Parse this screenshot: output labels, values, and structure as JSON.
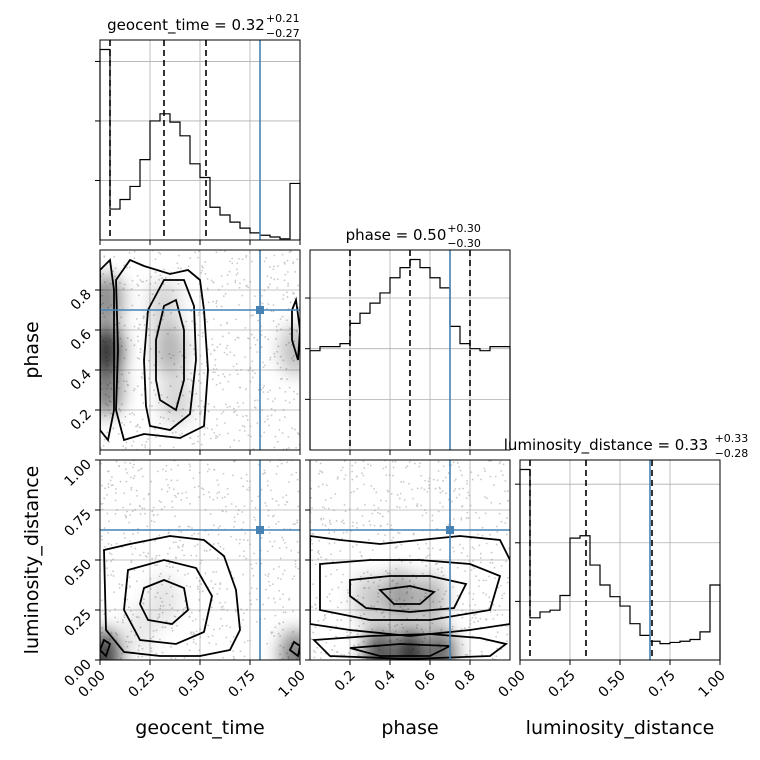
{
  "parameters": [
    "geocent_time",
    "phase",
    "luminosity_distance"
  ],
  "axis_labels": {
    "geocent_time": "geocent_time",
    "phase": "phase",
    "luminosity_distance": "luminosity_distance"
  },
  "titles": [
    {
      "param": "geocent_time",
      "text": "geocent_time = 0.32",
      "sup": "+0.21",
      "sub": "−0.27"
    },
    {
      "param": "phase",
      "text": "phase = 0.50",
      "sup": "+0.30",
      "sub": "−0.30"
    },
    {
      "param": "luminosity_distance",
      "text": "luminosity_distance = 0.33",
      "sup": "+0.33",
      "sub": "−0.28"
    }
  ],
  "ticks": {
    "geocent_time": {
      "values": [
        0.0,
        0.25,
        0.5,
        0.75,
        1.0
      ],
      "labels": [
        "0.00",
        "0.25",
        "0.50",
        "0.75",
        "1.00"
      ]
    },
    "phase_x": {
      "values": [
        0.2,
        0.4,
        0.6,
        0.8
      ],
      "labels": [
        "0.2",
        "0.4",
        "0.6",
        "0.8"
      ]
    },
    "phase_y": {
      "values": [
        0.2,
        0.4,
        0.6,
        0.8
      ],
      "labels": [
        "0.2",
        "0.4",
        "0.6",
        "0.8"
      ]
    },
    "luminosity_distance": {
      "values": [
        0.0,
        0.25,
        0.5,
        0.75,
        1.0
      ],
      "labels": [
        "0.00",
        "0.25",
        "0.50",
        "0.75",
        "1.00"
      ]
    }
  },
  "colors": {
    "truth": "#4682b4",
    "contour": "#000000",
    "density": "#000000",
    "grid": "#b0b0b0"
  },
  "chart_data": {
    "type": "corner",
    "ranges": {
      "geocent_time": [
        0.0,
        1.0
      ],
      "phase": [
        0.0,
        1.0
      ],
      "luminosity_distance": [
        0.0,
        1.0
      ]
    },
    "truths": {
      "geocent_time": 0.8,
      "phase": 0.7,
      "luminosity_distance": 0.65
    },
    "quantiles": {
      "geocent_time": [
        0.05,
        0.32,
        0.53
      ],
      "phase": [
        0.2,
        0.5,
        0.8
      ],
      "luminosity_distance": [
        0.05,
        0.33,
        0.66
      ]
    },
    "histograms": {
      "geocent_time": {
        "bin_edges": [
          0.0,
          0.05,
          0.1,
          0.15,
          0.2,
          0.25,
          0.3,
          0.35,
          0.4,
          0.45,
          0.5,
          0.55,
          0.6,
          0.65,
          0.7,
          0.75,
          0.8,
          0.85,
          0.9,
          0.95,
          1.0
        ],
        "density": [
          3.2,
          0.52,
          0.68,
          0.9,
          1.35,
          2.0,
          2.12,
          1.98,
          1.75,
          1.28,
          1.05,
          0.55,
          0.42,
          0.3,
          0.2,
          0.12,
          0.08,
          0.05,
          0.02,
          0.95
        ]
      },
      "phase": {
        "bin_edges": [
          0.0,
          0.05,
          0.1,
          0.15,
          0.2,
          0.25,
          0.3,
          0.35,
          0.4,
          0.45,
          0.5,
          0.55,
          0.6,
          0.65,
          0.7,
          0.75,
          0.8,
          0.85,
          0.9,
          0.95,
          1.0
        ],
        "density": [
          0.98,
          1.02,
          1.02,
          1.05,
          1.25,
          1.35,
          1.45,
          1.55,
          1.7,
          1.8,
          1.88,
          1.8,
          1.7,
          1.6,
          1.22,
          1.05,
          1.0,
          0.98,
          1.02,
          1.02
        ]
      },
      "luminosity_distance": {
        "bin_edges": [
          0.0,
          0.05,
          0.1,
          0.15,
          0.2,
          0.25,
          0.3,
          0.35,
          0.4,
          0.45,
          0.5,
          0.55,
          0.6,
          0.65,
          0.7,
          0.75,
          0.8,
          0.85,
          0.9,
          0.95,
          1.0
        ],
        "density": [
          3.25,
          0.72,
          0.82,
          0.85,
          1.1,
          2.08,
          2.12,
          1.62,
          1.28,
          1.08,
          0.92,
          0.62,
          0.42,
          0.32,
          0.28,
          0.3,
          0.32,
          0.35,
          0.48,
          1.28
        ]
      }
    },
    "contours_2d": [
      {
        "x": "geocent_time",
        "y": "phase",
        "density_blobs": [
          {
            "x": 0.03,
            "y": 0.5,
            "level": 0.95
          },
          {
            "x": 0.03,
            "y": 0.3,
            "level": 0.6
          },
          {
            "x": 0.03,
            "y": 0.75,
            "level": 0.55
          },
          {
            "x": 0.35,
            "y": 0.5,
            "level": 0.35
          },
          {
            "x": 0.32,
            "y": 0.72,
            "level": 0.2
          },
          {
            "x": 0.38,
            "y": 0.25,
            "level": 0.2
          },
          {
            "x": 0.98,
            "y": 0.5,
            "level": 0.3
          }
        ],
        "contours": [
          {
            "points": [
              [
                0.12,
                0.05
              ],
              [
                0.22,
                0.08
              ],
              [
                0.4,
                0.06
              ],
              [
                0.52,
                0.12
              ],
              [
                0.54,
                0.4
              ],
              [
                0.52,
                0.7
              ],
              [
                0.5,
                0.85
              ],
              [
                0.44,
                0.9
              ],
              [
                0.35,
                0.88
              ],
              [
                0.22,
                0.92
              ],
              [
                0.15,
                0.95
              ],
              [
                0.08,
                0.85
              ],
              [
                0.09,
                0.5
              ],
              [
                0.08,
                0.2
              ]
            ]
          },
          {
            "points": [
              [
                0.25,
                0.12
              ],
              [
                0.35,
                0.1
              ],
              [
                0.45,
                0.18
              ],
              [
                0.48,
                0.45
              ],
              [
                0.47,
                0.72
              ],
              [
                0.42,
                0.85
              ],
              [
                0.32,
                0.85
              ],
              [
                0.24,
                0.7
              ],
              [
                0.22,
                0.45
              ],
              [
                0.23,
                0.22
              ]
            ]
          },
          {
            "points": [
              [
                0.3,
                0.25
              ],
              [
                0.38,
                0.2
              ],
              [
                0.42,
                0.35
              ],
              [
                0.42,
                0.6
              ],
              [
                0.38,
                0.75
              ],
              [
                0.32,
                0.72
              ],
              [
                0.28,
                0.55
              ],
              [
                0.28,
                0.35
              ]
            ]
          },
          {
            "points": [
              [
                0.0,
                0.1
              ],
              [
                0.04,
                0.05
              ],
              [
                0.07,
                0.2
              ],
              [
                0.07,
                0.8
              ],
              [
                0.05,
                0.95
              ],
              [
                0.0,
                0.9
              ]
            ]
          },
          {
            "points": [
              [
                0.96,
                0.55
              ],
              [
                0.99,
                0.45
              ],
              [
                1.0,
                0.6
              ],
              [
                0.98,
                0.75
              ],
              [
                0.96,
                0.7
              ]
            ]
          }
        ]
      },
      {
        "x": "geocent_time",
        "y": "luminosity_distance",
        "density_blobs": [
          {
            "x": 0.02,
            "y": 0.02,
            "level": 0.9
          },
          {
            "x": 0.98,
            "y": 0.02,
            "level": 0.6
          },
          {
            "x": 0.32,
            "y": 0.3,
            "level": 0.12
          },
          {
            "x": 0.2,
            "y": 0.15,
            "level": 0.1
          }
        ],
        "contours": [
          {
            "points": [
              [
                0.02,
                0.55
              ],
              [
                0.15,
                0.58
              ],
              [
                0.35,
                0.62
              ],
              [
                0.52,
                0.6
              ],
              [
                0.62,
                0.52
              ],
              [
                0.68,
                0.35
              ],
              [
                0.7,
                0.15
              ],
              [
                0.65,
                0.05
              ],
              [
                0.5,
                0.02
              ],
              [
                0.3,
                0.02
              ],
              [
                0.12,
                0.04
              ],
              [
                0.03,
                0.15
              ]
            ]
          },
          {
            "points": [
              [
                0.14,
                0.45
              ],
              [
                0.32,
                0.5
              ],
              [
                0.48,
                0.46
              ],
              [
                0.56,
                0.32
              ],
              [
                0.52,
                0.14
              ],
              [
                0.38,
                0.08
              ],
              [
                0.2,
                0.1
              ],
              [
                0.12,
                0.25
              ]
            ]
          },
          {
            "points": [
              [
                0.22,
                0.36
              ],
              [
                0.32,
                0.4
              ],
              [
                0.42,
                0.36
              ],
              [
                0.44,
                0.25
              ],
              [
                0.36,
                0.18
              ],
              [
                0.24,
                0.2
              ],
              [
                0.2,
                0.28
              ]
            ]
          },
          {
            "points": [
              [
                0.0,
                0.05
              ],
              [
                0.03,
                0.02
              ],
              [
                0.05,
                0.08
              ],
              [
                0.02,
                0.1
              ]
            ]
          },
          {
            "points": [
              [
                0.95,
                0.05
              ],
              [
                0.99,
                0.02
              ],
              [
                1.0,
                0.07
              ],
              [
                0.97,
                0.09
              ]
            ]
          }
        ]
      },
      {
        "x": "phase",
        "y": "luminosity_distance",
        "density_blobs": [
          {
            "x": 0.5,
            "y": 0.03,
            "level": 0.95
          },
          {
            "x": 0.35,
            "y": 0.03,
            "level": 0.8
          },
          {
            "x": 0.65,
            "y": 0.03,
            "level": 0.7
          },
          {
            "x": 0.45,
            "y": 0.32,
            "level": 0.45
          },
          {
            "x": 0.6,
            "y": 0.3,
            "level": 0.35
          },
          {
            "x": 0.3,
            "y": 0.3,
            "level": 0.25
          }
        ],
        "contours": [
          {
            "points": [
              [
                0.0,
                0.62
              ],
              [
                0.15,
                0.6
              ],
              [
                0.35,
                0.58
              ],
              [
                0.55,
                0.6
              ],
              [
                0.75,
                0.62
              ],
              [
                0.95,
                0.6
              ],
              [
                1.0,
                0.5
              ],
              [
                1.0,
                0.18
              ],
              [
                0.8,
                0.15
              ],
              [
                0.5,
                0.12
              ],
              [
                0.2,
                0.15
              ],
              [
                0.0,
                0.18
              ]
            ]
          },
          {
            "points": [
              [
                0.05,
                0.48
              ],
              [
                0.3,
                0.5
              ],
              [
                0.55,
                0.5
              ],
              [
                0.8,
                0.48
              ],
              [
                0.95,
                0.42
              ],
              [
                0.9,
                0.25
              ],
              [
                0.6,
                0.2
              ],
              [
                0.3,
                0.2
              ],
              [
                0.05,
                0.25
              ]
            ]
          },
          {
            "points": [
              [
                0.2,
                0.4
              ],
              [
                0.4,
                0.42
              ],
              [
                0.6,
                0.42
              ],
              [
                0.78,
                0.38
              ],
              [
                0.72,
                0.26
              ],
              [
                0.5,
                0.24
              ],
              [
                0.28,
                0.26
              ],
              [
                0.2,
                0.32
              ]
            ]
          },
          {
            "points": [
              [
                0.35,
                0.35
              ],
              [
                0.5,
                0.37
              ],
              [
                0.62,
                0.34
              ],
              [
                0.55,
                0.28
              ],
              [
                0.42,
                0.28
              ]
            ]
          },
          {
            "points": [
              [
                0.02,
                0.1
              ],
              [
                0.3,
                0.12
              ],
              [
                0.6,
                0.13
              ],
              [
                0.85,
                0.11
              ],
              [
                0.98,
                0.08
              ],
              [
                0.9,
                0.02
              ],
              [
                0.5,
                0.005
              ],
              [
                0.1,
                0.02
              ]
            ]
          },
          {
            "points": [
              [
                0.2,
                0.06
              ],
              [
                0.45,
                0.08
              ],
              [
                0.7,
                0.07
              ],
              [
                0.6,
                0.02
              ],
              [
                0.35,
                0.02
              ]
            ]
          }
        ]
      }
    ]
  }
}
